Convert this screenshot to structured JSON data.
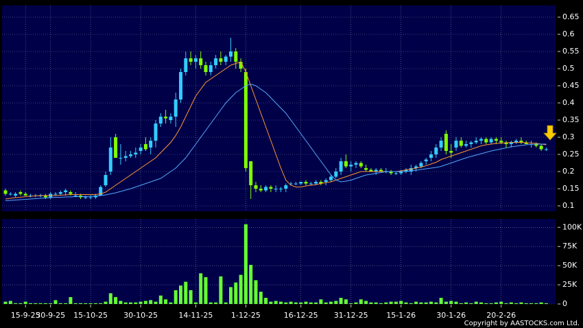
{
  "chart_data": [
    {
      "type": "candlestick",
      "ylim": [
        0.084,
        0.684
      ],
      "yticks": [
        0.1,
        0.15,
        0.2,
        0.25,
        0.3,
        0.35,
        0.4,
        0.45,
        0.5,
        0.55,
        0.6,
        0.65
      ],
      "grid": true,
      "up_color": "#33ccff",
      "down_color": "#80ff00",
      "open": [
        0.145,
        0.135,
        0.13,
        0.14,
        0.135,
        0.13,
        0.13,
        0.13,
        0.13,
        0.125,
        0.135,
        0.135,
        0.14,
        0.14,
        0.13,
        0.13,
        0.125,
        0.125,
        0.125,
        0.13,
        0.16,
        0.2,
        0.3,
        0.24,
        0.24,
        0.245,
        0.25,
        0.26,
        0.28,
        0.27,
        0.29,
        0.34,
        0.36,
        0.35,
        0.36,
        0.41,
        0.49,
        0.53,
        0.52,
        0.53,
        0.51,
        0.49,
        0.51,
        0.53,
        0.52,
        0.535,
        0.55,
        0.52,
        0.49,
        0.23,
        0.16,
        0.15,
        0.145,
        0.155,
        0.15,
        0.15,
        0.15,
        0.165,
        0.165,
        0.165,
        0.17,
        0.165,
        0.165,
        0.17,
        0.17,
        0.175,
        0.185,
        0.2,
        0.23,
        0.215,
        0.22,
        0.225,
        0.21,
        0.205,
        0.2,
        0.205,
        0.2,
        0.2,
        0.195,
        0.195,
        0.2,
        0.2,
        0.21,
        0.215,
        0.23,
        0.24,
        0.25,
        0.27,
        0.31,
        0.26,
        0.27,
        0.29,
        0.275,
        0.28,
        0.285,
        0.29,
        0.295,
        0.285,
        0.295,
        0.29,
        0.285,
        0.28,
        0.285,
        0.29,
        0.285,
        0.28,
        0.28,
        0.275,
        0.265
      ],
      "high": [
        0.15,
        0.14,
        0.14,
        0.145,
        0.14,
        0.135,
        0.135,
        0.135,
        0.135,
        0.14,
        0.14,
        0.145,
        0.15,
        0.145,
        0.14,
        0.135,
        0.13,
        0.13,
        0.135,
        0.16,
        0.2,
        0.3,
        0.31,
        0.28,
        0.26,
        0.26,
        0.27,
        0.28,
        0.3,
        0.3,
        0.35,
        0.37,
        0.38,
        0.37,
        0.43,
        0.5,
        0.55,
        0.55,
        0.54,
        0.55,
        0.52,
        0.52,
        0.54,
        0.55,
        0.54,
        0.59,
        0.56,
        0.53,
        0.5,
        0.23,
        0.17,
        0.16,
        0.16,
        0.16,
        0.16,
        0.155,
        0.165,
        0.17,
        0.17,
        0.17,
        0.175,
        0.17,
        0.175,
        0.175,
        0.18,
        0.19,
        0.21,
        0.24,
        0.25,
        0.23,
        0.23,
        0.23,
        0.22,
        0.21,
        0.21,
        0.21,
        0.21,
        0.205,
        0.2,
        0.205,
        0.21,
        0.22,
        0.22,
        0.23,
        0.24,
        0.26,
        0.28,
        0.3,
        0.32,
        0.28,
        0.3,
        0.3,
        0.29,
        0.29,
        0.3,
        0.3,
        0.3,
        0.3,
        0.3,
        0.3,
        0.29,
        0.29,
        0.295,
        0.3,
        0.29,
        0.29,
        0.285,
        0.28,
        0.27
      ],
      "low": [
        0.13,
        0.13,
        0.125,
        0.13,
        0.13,
        0.125,
        0.125,
        0.125,
        0.12,
        0.12,
        0.13,
        0.13,
        0.13,
        0.13,
        0.125,
        0.12,
        0.12,
        0.12,
        0.12,
        0.13,
        0.155,
        0.19,
        0.24,
        0.22,
        0.23,
        0.24,
        0.24,
        0.25,
        0.26,
        0.25,
        0.27,
        0.33,
        0.34,
        0.34,
        0.33,
        0.4,
        0.48,
        0.51,
        0.5,
        0.5,
        0.48,
        0.48,
        0.5,
        0.51,
        0.51,
        0.52,
        0.5,
        0.49,
        0.2,
        0.12,
        0.14,
        0.14,
        0.14,
        0.14,
        0.14,
        0.14,
        0.14,
        0.16,
        0.16,
        0.16,
        0.16,
        0.16,
        0.16,
        0.16,
        0.16,
        0.17,
        0.18,
        0.19,
        0.21,
        0.2,
        0.21,
        0.21,
        0.2,
        0.2,
        0.19,
        0.2,
        0.195,
        0.19,
        0.19,
        0.19,
        0.195,
        0.19,
        0.2,
        0.21,
        0.22,
        0.23,
        0.24,
        0.26,
        0.25,
        0.24,
        0.26,
        0.27,
        0.27,
        0.27,
        0.28,
        0.28,
        0.28,
        0.28,
        0.28,
        0.28,
        0.27,
        0.27,
        0.28,
        0.28,
        0.28,
        0.27,
        0.27,
        0.26,
        0.26
      ],
      "close": [
        0.135,
        0.135,
        0.135,
        0.135,
        0.13,
        0.13,
        0.13,
        0.13,
        0.125,
        0.135,
        0.135,
        0.14,
        0.145,
        0.135,
        0.13,
        0.125,
        0.125,
        0.125,
        0.13,
        0.155,
        0.19,
        0.27,
        0.24,
        0.24,
        0.245,
        0.25,
        0.255,
        0.27,
        0.265,
        0.29,
        0.34,
        0.36,
        0.355,
        0.36,
        0.41,
        0.49,
        0.53,
        0.52,
        0.53,
        0.51,
        0.49,
        0.51,
        0.53,
        0.52,
        0.535,
        0.55,
        0.52,
        0.5,
        0.21,
        0.16,
        0.15,
        0.145,
        0.155,
        0.15,
        0.15,
        0.15,
        0.16,
        0.165,
        0.165,
        0.17,
        0.165,
        0.165,
        0.17,
        0.165,
        0.175,
        0.185,
        0.2,
        0.23,
        0.215,
        0.22,
        0.225,
        0.215,
        0.205,
        0.2,
        0.205,
        0.2,
        0.2,
        0.195,
        0.195,
        0.2,
        0.205,
        0.21,
        0.215,
        0.225,
        0.235,
        0.25,
        0.27,
        0.29,
        0.26,
        0.255,
        0.29,
        0.275,
        0.28,
        0.285,
        0.29,
        0.295,
        0.285,
        0.295,
        0.29,
        0.285,
        0.28,
        0.285,
        0.29,
        0.285,
        0.28,
        0.28,
        0.275,
        0.265,
        0.265
      ],
      "series": [
        {
          "color": "#ff9933",
          "values": [
            0.12,
            0.122,
            0.124,
            0.125,
            0.127,
            0.128,
            0.129,
            0.13,
            0.13,
            0.13,
            0.13,
            0.131,
            0.132,
            0.133,
            0.133,
            0.133,
            0.133,
            0.133,
            0.133,
            0.135,
            0.14,
            0.15,
            0.16,
            0.17,
            0.18,
            0.19,
            0.2,
            0.21,
            0.22,
            0.23,
            0.24,
            0.255,
            0.27,
            0.285,
            0.305,
            0.33,
            0.36,
            0.39,
            0.42,
            0.44,
            0.46,
            0.47,
            0.48,
            0.49,
            0.5,
            0.51,
            0.515,
            0.52,
            0.49,
            0.45,
            0.41,
            0.37,
            0.33,
            0.29,
            0.25,
            0.21,
            0.175,
            0.16,
            0.155,
            0.155,
            0.158,
            0.16,
            0.162,
            0.165,
            0.168,
            0.17,
            0.175,
            0.18,
            0.185,
            0.19,
            0.195,
            0.2,
            0.2,
            0.2,
            0.2,
            0.2,
            0.2,
            0.2,
            0.2,
            0.202,
            0.205,
            0.207,
            0.21,
            0.213,
            0.217,
            0.222,
            0.227,
            0.235,
            0.24,
            0.245,
            0.25,
            0.255,
            0.26,
            0.265,
            0.27,
            0.275,
            0.278,
            0.28,
            0.282,
            0.283,
            0.284,
            0.285,
            0.285,
            0.285,
            0.284,
            0.283,
            0.282,
            0.28,
            0.278
          ]
        },
        {
          "color": "#55aaff",
          "values": [
            0.115,
            0.116,
            0.117,
            0.118,
            0.119,
            0.12,
            0.121,
            0.122,
            0.123,
            0.124,
            0.125,
            0.125,
            0.126,
            0.126,
            0.127,
            0.127,
            0.127,
            0.128,
            0.128,
            0.13,
            0.132,
            0.135,
            0.138,
            0.142,
            0.146,
            0.15,
            0.155,
            0.16,
            0.165,
            0.17,
            0.175,
            0.18,
            0.19,
            0.2,
            0.21,
            0.225,
            0.24,
            0.26,
            0.28,
            0.3,
            0.32,
            0.34,
            0.36,
            0.38,
            0.4,
            0.415,
            0.43,
            0.44,
            0.45,
            0.455,
            0.45,
            0.44,
            0.43,
            0.415,
            0.4,
            0.385,
            0.37,
            0.35,
            0.33,
            0.31,
            0.29,
            0.27,
            0.25,
            0.23,
            0.21,
            0.19,
            0.175,
            0.17,
            0.172,
            0.175,
            0.18,
            0.185,
            0.19,
            0.192,
            0.195,
            0.197,
            0.2,
            0.2,
            0.2,
            0.2,
            0.2,
            0.202,
            0.204,
            0.206,
            0.208,
            0.21,
            0.212,
            0.215,
            0.22,
            0.225,
            0.23,
            0.235,
            0.24,
            0.244,
            0.248,
            0.252,
            0.256,
            0.26,
            0.263,
            0.266,
            0.269,
            0.272,
            0.274,
            0.276,
            0.278,
            0.279,
            0.28,
            0.28,
            0.28
          ]
        }
      ]
    },
    {
      "type": "bar",
      "color": "#66ff33",
      "ylim": [
        0,
        111000
      ],
      "grid": true,
      "yticks": [
        0,
        {
          "value": 25000,
          "label": "25K"
        },
        {
          "value": 50000,
          "label": "50K"
        },
        {
          "value": 75000,
          "label": "75K"
        },
        {
          "value": 100000,
          "label": "100K"
        }
      ],
      "categories": [
        null,
        null,
        null,
        null,
        "15-9-25",
        null,
        null,
        null,
        null,
        "30-9-25",
        null,
        null,
        null,
        null,
        null,
        null,
        null,
        "15-10-25",
        null,
        null,
        null,
        null,
        null,
        null,
        null,
        null,
        null,
        "30-10-25",
        null,
        null,
        null,
        null,
        null,
        null,
        null,
        null,
        null,
        null,
        "14-11-25",
        null,
        null,
        null,
        null,
        null,
        null,
        null,
        null,
        null,
        "1-12-25",
        null,
        null,
        null,
        null,
        null,
        null,
        null,
        null,
        null,
        null,
        "16-12-25",
        null,
        null,
        null,
        null,
        null,
        null,
        null,
        null,
        null,
        "31-12-25",
        null,
        null,
        null,
        null,
        null,
        null,
        null,
        null,
        null,
        "15-1-26",
        null,
        null,
        null,
        null,
        null,
        null,
        null,
        null,
        null,
        "30-1-26",
        null,
        null,
        null,
        null,
        null,
        null,
        null,
        null,
        null,
        "20-2-26",
        null,
        null,
        null,
        null,
        null,
        null,
        null,
        null,
        null
      ],
      "values": [
        3000,
        4000,
        1000,
        1000,
        3000,
        1000,
        1000,
        1000,
        1000,
        1000,
        5000,
        1000,
        1000,
        9000,
        1000,
        1000,
        1000,
        1000,
        1000,
        1000,
        3000,
        14000,
        9000,
        4000,
        2000,
        2000,
        2000,
        3000,
        4000,
        5000,
        3000,
        11000,
        6000,
        2000,
        18000,
        24000,
        29000,
        18000,
        2000,
        40000,
        35000,
        2000,
        2000,
        36000,
        2000,
        22000,
        28000,
        38000,
        104000,
        51000,
        31000,
        16000,
        8000,
        3000,
        4000,
        3000,
        2000,
        3000,
        2000,
        2000,
        3000,
        2000,
        2000,
        6000,
        2000,
        3000,
        4000,
        8000,
        6000,
        1000,
        2000,
        6000,
        4000,
        2000,
        2000,
        1000,
        2000,
        3000,
        3000,
        4000,
        2000,
        1000,
        3000,
        2000,
        2000,
        3000,
        2000,
        8000,
        3000,
        4000,
        3000,
        1000,
        2000,
        1000,
        3000,
        2000,
        1000,
        1000,
        2000,
        3000,
        1000,
        2000,
        1000,
        2000,
        1000,
        1000,
        1000,
        2000,
        1000
      ]
    }
  ],
  "footer": "Copyright by AASTOCKS.com Ltd."
}
